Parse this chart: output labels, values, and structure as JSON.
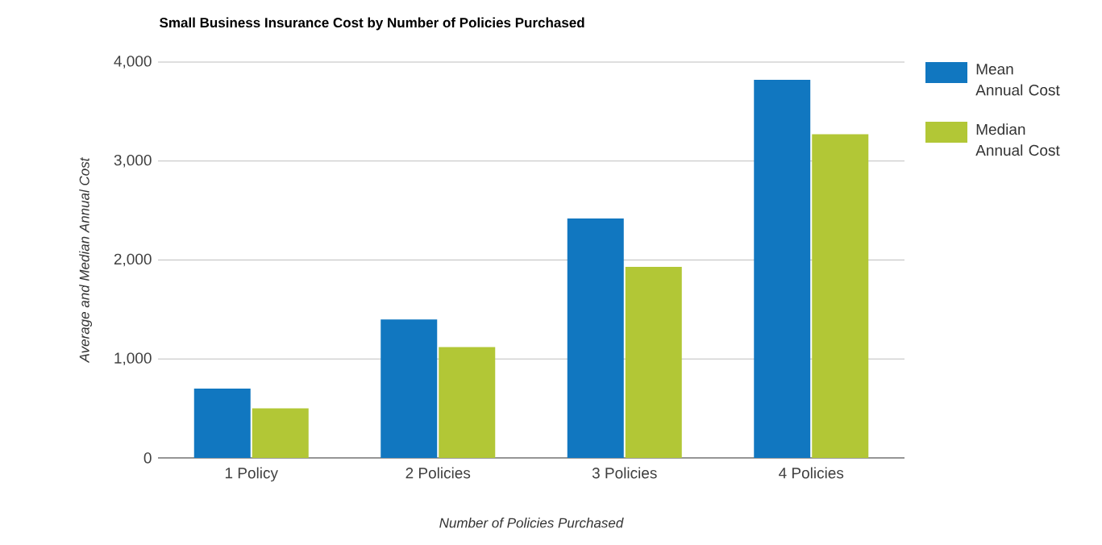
{
  "chart_data": {
    "type": "bar",
    "title": "Small Business Insurance Cost by Number of Policies Purchased",
    "xlabel": "Number of Policies Purchased",
    "ylabel": "Average and Median Annual Cost",
    "categories": [
      "1 Policy",
      "2 Policies",
      "3 Policies",
      "4 Policies"
    ],
    "series": [
      {
        "name": "Mean Annual Cost",
        "color": "#1177c0",
        "values": [
          700,
          1400,
          2420,
          3820
        ]
      },
      {
        "name": "Median Annual Cost",
        "color": "#b2c736",
        "values": [
          500,
          1120,
          1930,
          3270
        ]
      }
    ],
    "ylim": [
      0,
      4000
    ],
    "yticks": [
      {
        "value": 0,
        "label": "0"
      },
      {
        "value": 1000,
        "label": "1,000"
      },
      {
        "value": 2000,
        "label": "2,000"
      },
      {
        "value": 3000,
        "label": "3,000"
      },
      {
        "value": 4000,
        "label": "4,000"
      }
    ],
    "grid": "y",
    "legend": "top right"
  }
}
